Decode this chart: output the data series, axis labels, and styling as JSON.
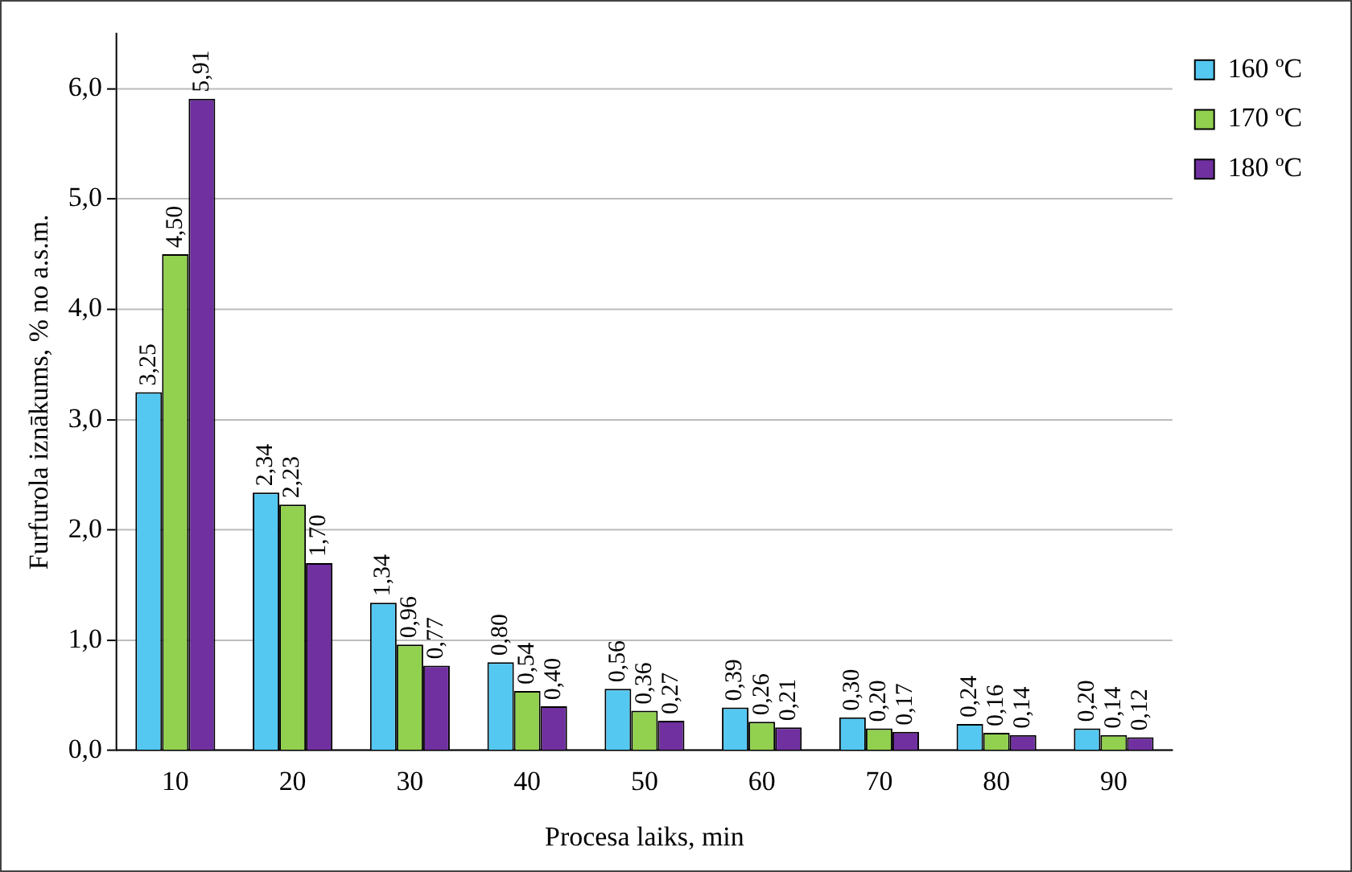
{
  "chart_data": {
    "type": "bar",
    "xlabel": "Procesa laiks, min",
    "ylabel": "Furfurola iznākums, % no a.s.m.",
    "categories": [
      "10",
      "20",
      "30",
      "40",
      "50",
      "60",
      "70",
      "80",
      "90"
    ],
    "series": [
      {
        "name": "160 ºC",
        "color": "#55c8f2",
        "values": [
          3.25,
          2.34,
          1.34,
          0.8,
          0.56,
          0.39,
          0.3,
          0.24,
          0.2
        ],
        "value_labels": [
          "3,25",
          "2,34",
          "1,34",
          "0,80",
          "0,56",
          "0,39",
          "0,30",
          "0,24",
          "0,20"
        ]
      },
      {
        "name": "170 ºC",
        "color": "#92d050",
        "values": [
          4.5,
          2.23,
          0.96,
          0.54,
          0.36,
          0.26,
          0.2,
          0.16,
          0.14
        ],
        "value_labels": [
          "4,50",
          "2,23",
          "0,96",
          "0,54",
          "0,36",
          "0,26",
          "0,20",
          "0,16",
          "0,14"
        ]
      },
      {
        "name": "180 ºC",
        "color": "#7030a0",
        "values": [
          5.91,
          1.7,
          0.77,
          0.4,
          0.27,
          0.21,
          0.17,
          0.14,
          0.12
        ],
        "value_labels": [
          "5,91",
          "1,70",
          "0,77",
          "0,40",
          "0,27",
          "0,21",
          "0,17",
          "0,14",
          "0,12"
        ]
      }
    ],
    "ylim": [
      0,
      6.5
    ],
    "yticks": [
      {
        "value": 0,
        "label": "0,0"
      },
      {
        "value": 1,
        "label": "1,0"
      },
      {
        "value": 2,
        "label": "2,0"
      },
      {
        "value": 3,
        "label": "3,0"
      },
      {
        "value": 4,
        "label": "4,0"
      },
      {
        "value": 5,
        "label": "5,0"
      },
      {
        "value": 6,
        "label": "6,0"
      }
    ],
    "grid": "y",
    "legend": "top right"
  }
}
